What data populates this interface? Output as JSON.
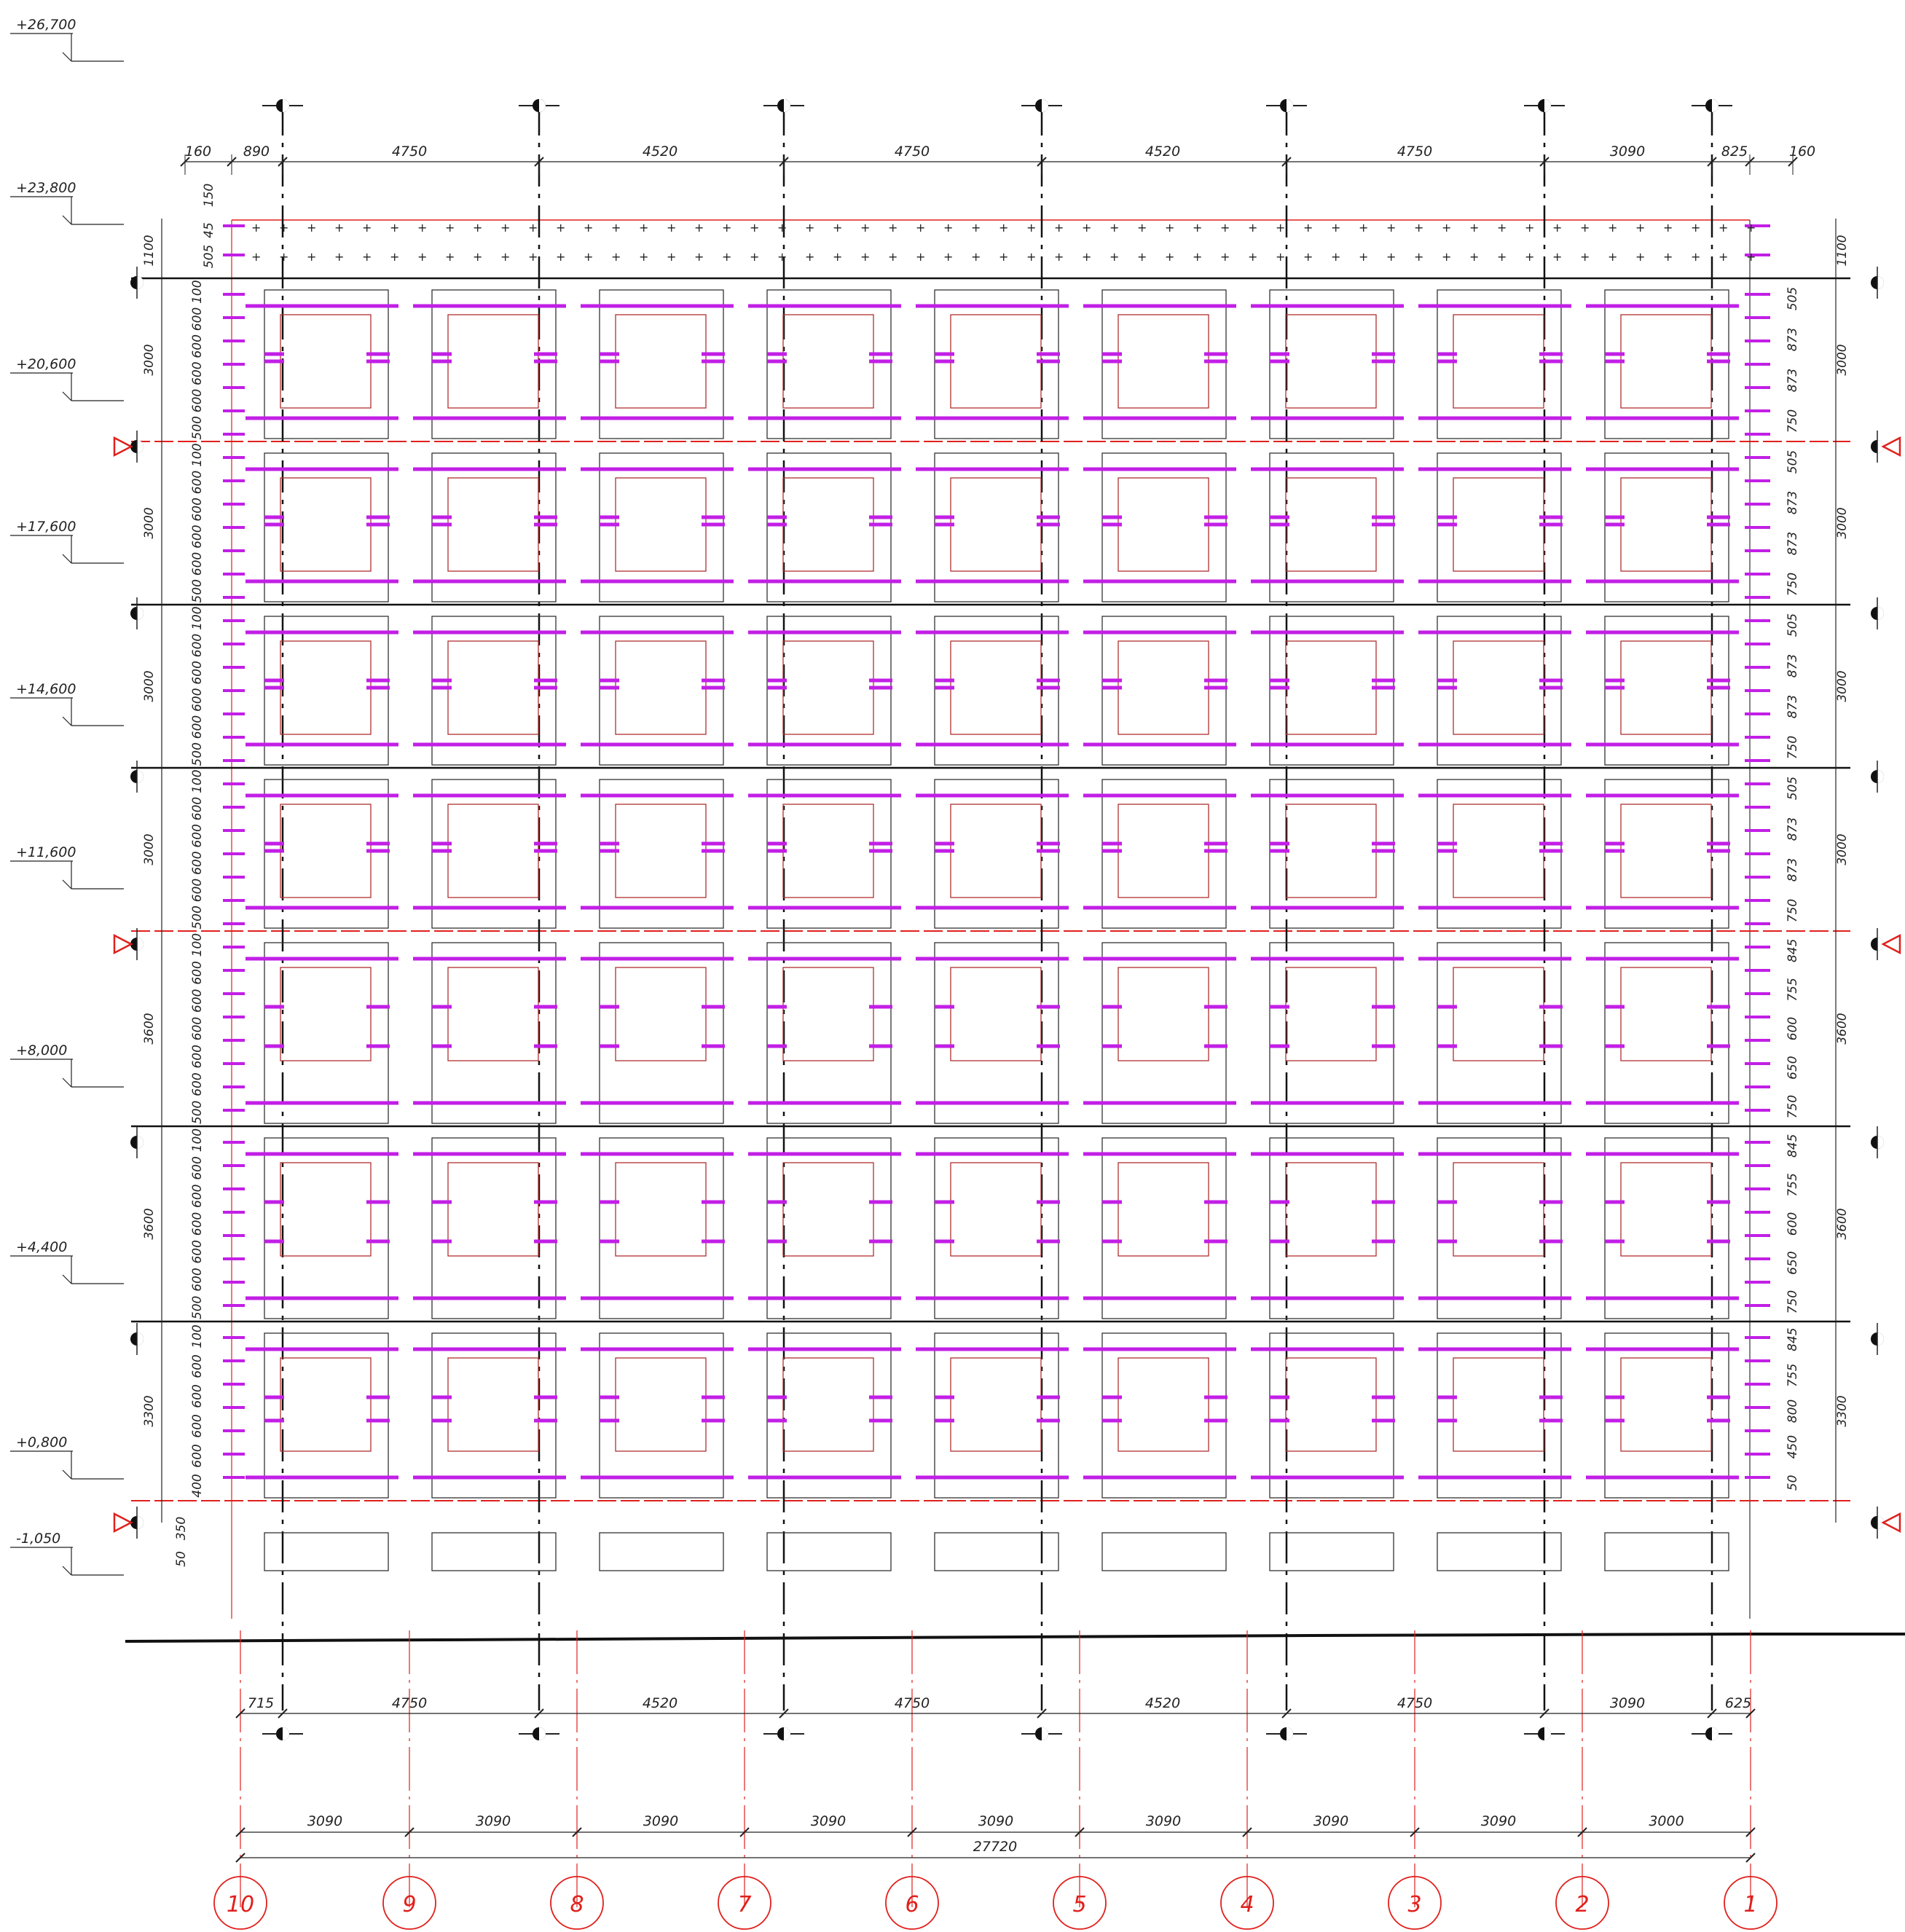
{
  "levels": [
    "+26,700",
    "+23,800",
    "+20,600",
    "+17,600",
    "+14,600",
    "+11,600",
    "+8,000",
    "+4,400",
    "+0,800",
    "-1,050"
  ],
  "top_dims": [
    "160",
    "890",
    "4750",
    "4520",
    "4750",
    "4520",
    "4750",
    "3090",
    "825",
    "160"
  ],
  "bottom_dims": [
    "715",
    "4750",
    "4520",
    "4750",
    "4520",
    "4750",
    "3090",
    "625"
  ],
  "grid_spacing": [
    "3090",
    "3090",
    "3090",
    "3090",
    "3090",
    "3090",
    "3090",
    "3090",
    "3000"
  ],
  "total_length": "27720",
  "axis_labels": [
    "10",
    "9",
    "8",
    "7",
    "6",
    "5",
    "4",
    "3",
    "2",
    "1"
  ],
  "left_floor_heights": [
    "1100",
    "3000",
    "3000",
    "3000",
    "3000",
    "3600",
    "3600",
    "3300"
  ],
  "right_floor_heights": [
    "1100",
    "3000",
    "3000",
    "3000",
    "3000",
    "3600",
    "3600",
    "3300"
  ],
  "top_band_sub": [
    "150",
    "45",
    "505"
  ],
  "left_sub_3000": [
    "100",
    "600",
    "600",
    "600",
    "600",
    "500"
  ],
  "left_sub_3600": [
    "100",
    "600",
    "600",
    "600",
    "600",
    "600",
    "500"
  ],
  "left_sub_3300": [
    "100",
    "600",
    "600",
    "600",
    "600",
    "400"
  ],
  "left_bottom": [
    "350",
    "50"
  ],
  "right_sub_3000": [
    "505",
    "873",
    "873",
    "750"
  ],
  "right_sub_3600": [
    "845",
    "755",
    "600",
    "650",
    "750"
  ],
  "right_sub_3300": [
    "845",
    "755",
    "800",
    "450",
    "50"
  ],
  "colors": {
    "magenta": "#c21fe6",
    "red": "#e0201c",
    "line": "#222222"
  }
}
